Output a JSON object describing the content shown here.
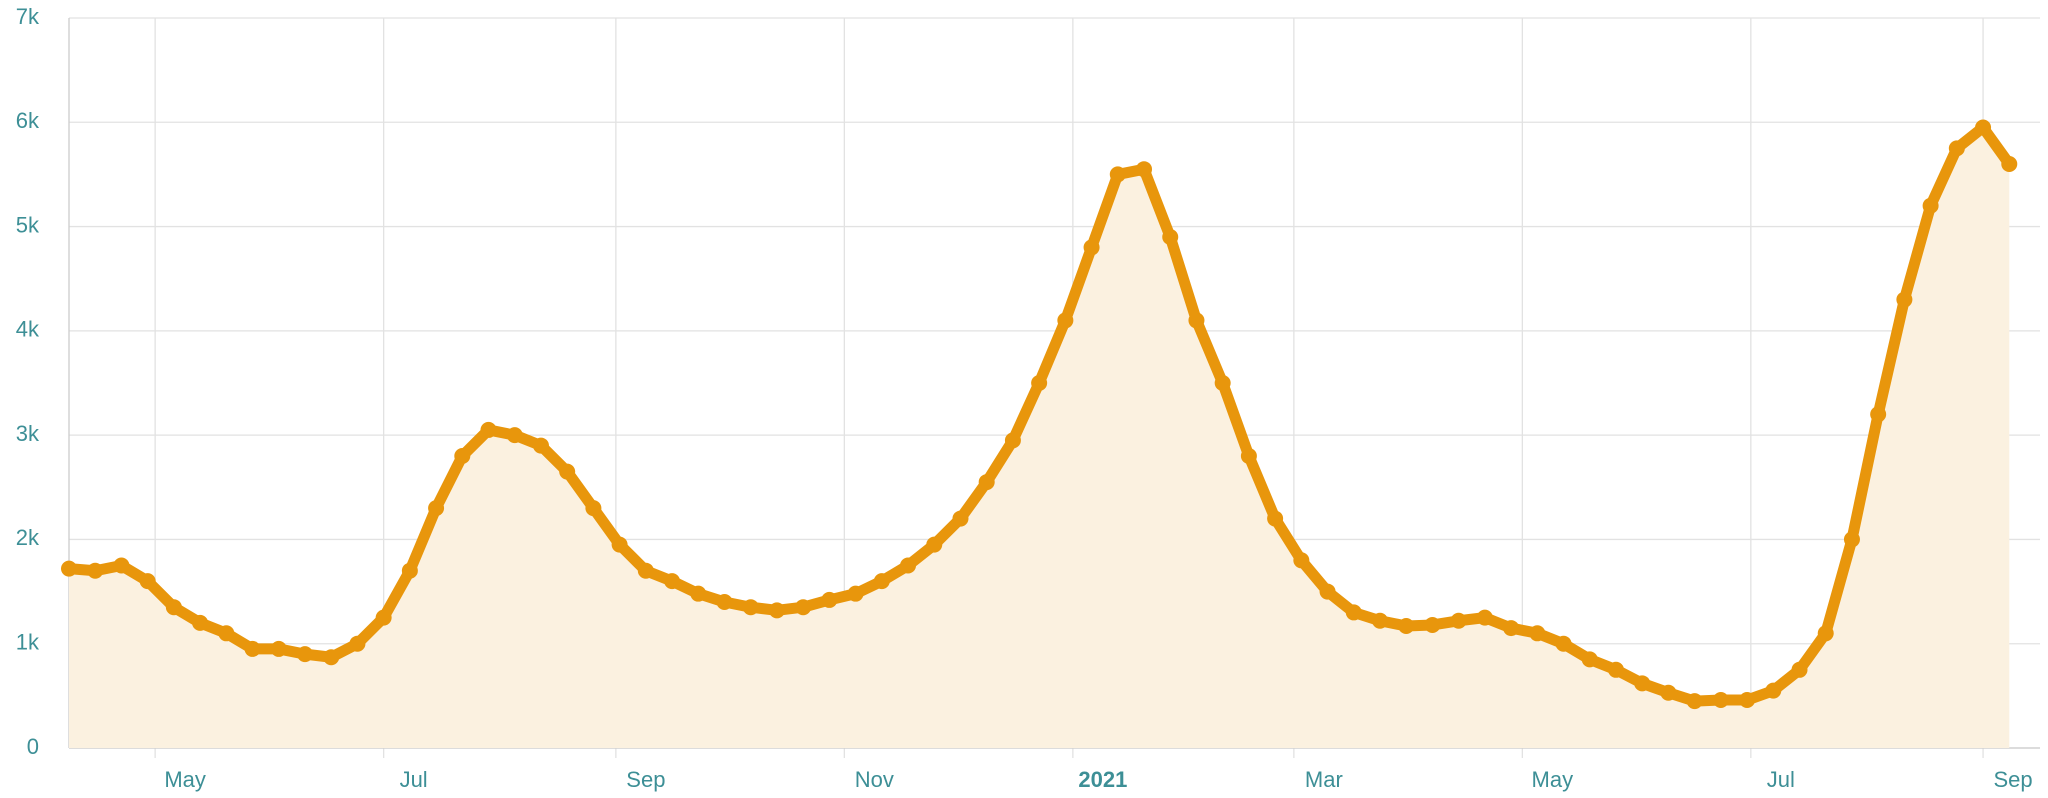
{
  "chart_data": {
    "type": "line",
    "x": [
      "2020-04-08",
      "2020-04-15",
      "2020-04-22",
      "2020-04-29",
      "2020-05-06",
      "2020-05-13",
      "2020-05-20",
      "2020-05-27",
      "2020-06-03",
      "2020-06-10",
      "2020-06-17",
      "2020-06-24",
      "2020-07-01",
      "2020-07-08",
      "2020-07-15",
      "2020-07-22",
      "2020-07-29",
      "2020-08-05",
      "2020-08-12",
      "2020-08-19",
      "2020-08-26",
      "2020-09-02",
      "2020-09-09",
      "2020-09-16",
      "2020-09-23",
      "2020-09-30",
      "2020-10-07",
      "2020-10-14",
      "2020-10-21",
      "2020-10-28",
      "2020-11-04",
      "2020-11-11",
      "2020-11-18",
      "2020-11-25",
      "2020-12-02",
      "2020-12-09",
      "2020-12-16",
      "2020-12-23",
      "2020-12-30",
      "2021-01-06",
      "2021-01-13",
      "2021-01-20",
      "2021-01-27",
      "2021-02-03",
      "2021-02-10",
      "2021-02-17",
      "2021-02-24",
      "2021-03-03",
      "2021-03-10",
      "2021-03-17",
      "2021-03-24",
      "2021-03-31",
      "2021-04-07",
      "2021-04-14",
      "2021-04-21",
      "2021-04-28",
      "2021-05-05",
      "2021-05-12",
      "2021-05-19",
      "2021-05-26",
      "2021-06-02",
      "2021-06-09",
      "2021-06-16",
      "2021-06-23",
      "2021-06-30",
      "2021-07-07",
      "2021-07-14",
      "2021-07-21",
      "2021-07-28",
      "2021-08-04",
      "2021-08-11",
      "2021-08-18",
      "2021-08-25",
      "2021-09-01",
      "2021-09-08"
    ],
    "series": [
      {
        "color": "#e8960c",
        "fill": "#fbf1e0",
        "values": [
          1720,
          1700,
          1750,
          1600,
          1350,
          1200,
          1100,
          950,
          950,
          900,
          870,
          1000,
          1250,
          1700,
          2300,
          2800,
          3050,
          3000,
          2900,
          2650,
          2300,
          1950,
          1700,
          1600,
          1480,
          1400,
          1350,
          1320,
          1350,
          1420,
          1480,
          1600,
          1750,
          1950,
          2200,
          2550,
          2950,
          3500,
          4100,
          4800,
          5500,
          5550,
          4900,
          4100,
          3500,
          2800,
          2200,
          1800,
          1500,
          1300,
          1220,
          1170,
          1180,
          1220,
          1250,
          1150,
          1100,
          1000,
          850,
          750,
          620,
          530,
          450,
          460,
          460,
          550,
          750,
          1100,
          2000,
          3200,
          4300,
          5200,
          5750,
          5950,
          5600
        ]
      }
    ],
    "xlim": [
      "2020-04-08",
      "2021-09-13"
    ],
    "xticks": [
      {
        "value": "2020-05",
        "label": "May"
      },
      {
        "value": "2020-07",
        "label": "Jul"
      },
      {
        "value": "2020-09",
        "label": "Sep"
      },
      {
        "value": "2020-11",
        "label": "Nov"
      },
      {
        "value": "2021-01",
        "label": "2021",
        "emphasis": true
      },
      {
        "value": "2021-03",
        "label": "Mar"
      },
      {
        "value": "2021-05",
        "label": "May"
      },
      {
        "value": "2021-07",
        "label": "Jul"
      },
      {
        "value": "2021-09",
        "label": "Sep"
      }
    ],
    "ylim": [
      0,
      7000
    ],
    "yticks": [
      0,
      {
        "value": 1000,
        "label": "1k"
      },
      {
        "value": 2000,
        "label": "2k"
      },
      {
        "value": 3000,
        "label": "3k"
      },
      {
        "value": 4000,
        "label": "4k"
      },
      {
        "value": 5000,
        "label": "5k"
      },
      {
        "value": 6000,
        "label": "6k"
      },
      {
        "value": 7000,
        "label": "7k"
      }
    ],
    "grid": true
  }
}
